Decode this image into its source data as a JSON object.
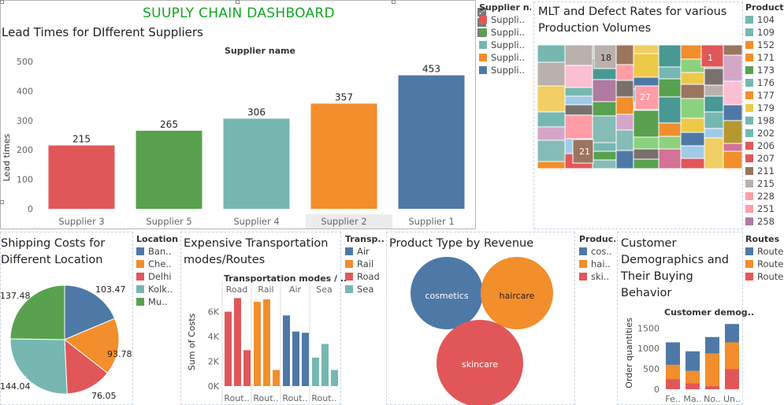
{
  "dashboard": {
    "title": "SUUPLY CHAIN DASHBOARD",
    "title_color": "#11a820"
  },
  "colors": {
    "blue": "#4e79a7",
    "orange": "#f28e2b",
    "red": "#e15759",
    "teal": "#76b7b2",
    "green": "#59a14f",
    "yellow": "#edc948",
    "purple": "#b07aa1",
    "pink": "#ff9da7",
    "brown": "#9c755f",
    "gray": "#bab0ac"
  },
  "panels": {
    "lead_times": {
      "title": "Lead Times for DIfferent Suppliers",
      "header": "Supplier name",
      "ylabel": "Lead times",
      "yticks": [
        "500",
        "400",
        "300",
        "200",
        "100",
        "0"
      ]
    },
    "supplier_legend": {
      "title": "Supplier n..",
      "items": [
        "Suppli..",
        "Suppli..",
        "Suppli..",
        "Suppli..",
        "Suppli.."
      ]
    },
    "mlt": {
      "title_line1": "MLT and Defect Rates for various",
      "title_line2": "Production Volumes",
      "labels": [
        "18",
        "1",
        "27",
        "21"
      ]
    },
    "production_legend": {
      "title": "Productio..",
      "items": [
        "104",
        "109",
        "152",
        "171",
        "173",
        "176",
        "177",
        "179",
        "198",
        "202",
        "206",
        "207",
        "211",
        "215",
        "228",
        "251",
        "258"
      ]
    },
    "shipping": {
      "title_line1": "Shipping Costs for",
      "title_line2": "Different Location",
      "labels": [
        "103.47",
        "93.78",
        "76.05",
        "144.04",
        "137.48"
      ]
    },
    "location_legend": {
      "title": "Location",
      "items": [
        "Ban..",
        "Che..",
        "Delhi",
        "Kolk..",
        "Mu.."
      ]
    },
    "transport": {
      "title_line1": "Expensive Transportation",
      "title_line2": "modes/Routes",
      "header": "Transportation modes / ..",
      "ylabel": "Sum of Costs",
      "yticks": [
        "6K",
        "4K",
        "2K",
        "0K"
      ],
      "modes": [
        "Road",
        "Rail",
        "Air",
        "Sea"
      ],
      "xlabels": [
        "Rout..",
        "Rout..",
        "Rout..",
        "Rout.."
      ]
    },
    "transp_legend": {
      "title": "Transp..",
      "items": [
        "Air",
        "Rail",
        "Road",
        "Sea"
      ]
    },
    "product": {
      "title": "Product Type by Revenue",
      "bubbles": [
        "cosmetics",
        "haircare",
        "skincare"
      ]
    },
    "product_legend": {
      "title": "Produc..",
      "items": [
        "cos..",
        "hai..",
        "ski.."
      ]
    },
    "customer": {
      "title_line1": "Customer",
      "title_line2": "Demographics and",
      "title_line3": "Their Buying",
      "title_line4": "Behavior",
      "header": "Customer demog..",
      "ylabel": "Order quantities",
      "yticks": [
        "1500",
        "1000",
        "500",
        "0"
      ],
      "xlabels": [
        "Fe..",
        "Ma..",
        "No..",
        "Un.."
      ]
    },
    "routes_legend": {
      "title": "Routes",
      "items": [
        "Route",
        "Route",
        "Route"
      ]
    }
  },
  "chart_data": [
    {
      "type": "bar",
      "title": "Lead Times for DIfferent Suppliers",
      "ylabel": "Lead times",
      "categories": [
        "Supplier 3",
        "Supplier 5",
        "Supplier 4",
        "Supplier 2",
        "Supplier 1"
      ],
      "values": [
        215,
        265,
        306,
        357,
        453
      ],
      "colors": [
        "#e15759",
        "#59a14f",
        "#76b7b2",
        "#f28e2b",
        "#4e79a7"
      ],
      "ylim": [
        0,
        500
      ]
    },
    {
      "type": "pie",
      "title": "Shipping Costs for Different Location",
      "categories": [
        "Bangalore",
        "Chennai",
        "Delhi",
        "Kolkata",
        "Mumbai"
      ],
      "values": [
        103.47,
        93.78,
        76.05,
        144.04,
        137.48
      ],
      "colors": [
        "#4e79a7",
        "#f28e2b",
        "#e15759",
        "#76b7b2",
        "#59a14f"
      ]
    },
    {
      "type": "bar",
      "title": "Expensive Transportation modes/Routes",
      "ylabel": "Sum of Costs",
      "groups": [
        "Road",
        "Rail",
        "Air",
        "Sea"
      ],
      "series": [
        {
          "name": "Road",
          "values": [
            6000,
            7100,
            2900
          ]
        },
        {
          "name": "Rail",
          "values": [
            6800,
            7000,
            1300
          ]
        },
        {
          "name": "Air",
          "values": [
            5700,
            4400,
            4300
          ]
        },
        {
          "name": "Sea",
          "values": [
            2300,
            3400,
            1300
          ]
        }
      ],
      "colors": [
        "#e15759",
        "#f28e2b",
        "#4e79a7",
        "#76b7b2"
      ],
      "ylim": [
        0,
        7500
      ]
    },
    {
      "type": "bar",
      "title": "Customer Demographics and Their Buying Behavior",
      "ylabel": "Order quantities",
      "categories": [
        "Fe..",
        "Ma..",
        "No..",
        "Un.."
      ],
      "series": [
        {
          "name": "Route",
          "values": [
            250,
            150,
            80,
            500
          ]
        },
        {
          "name": "Route",
          "values": [
            350,
            300,
            800,
            650
          ]
        },
        {
          "name": "Route",
          "values": [
            550,
            480,
            400,
            450
          ]
        }
      ],
      "colors": [
        "#e15759",
        "#f28e2b",
        "#4e79a7"
      ],
      "ylim": [
        0,
        1700
      ]
    }
  ]
}
